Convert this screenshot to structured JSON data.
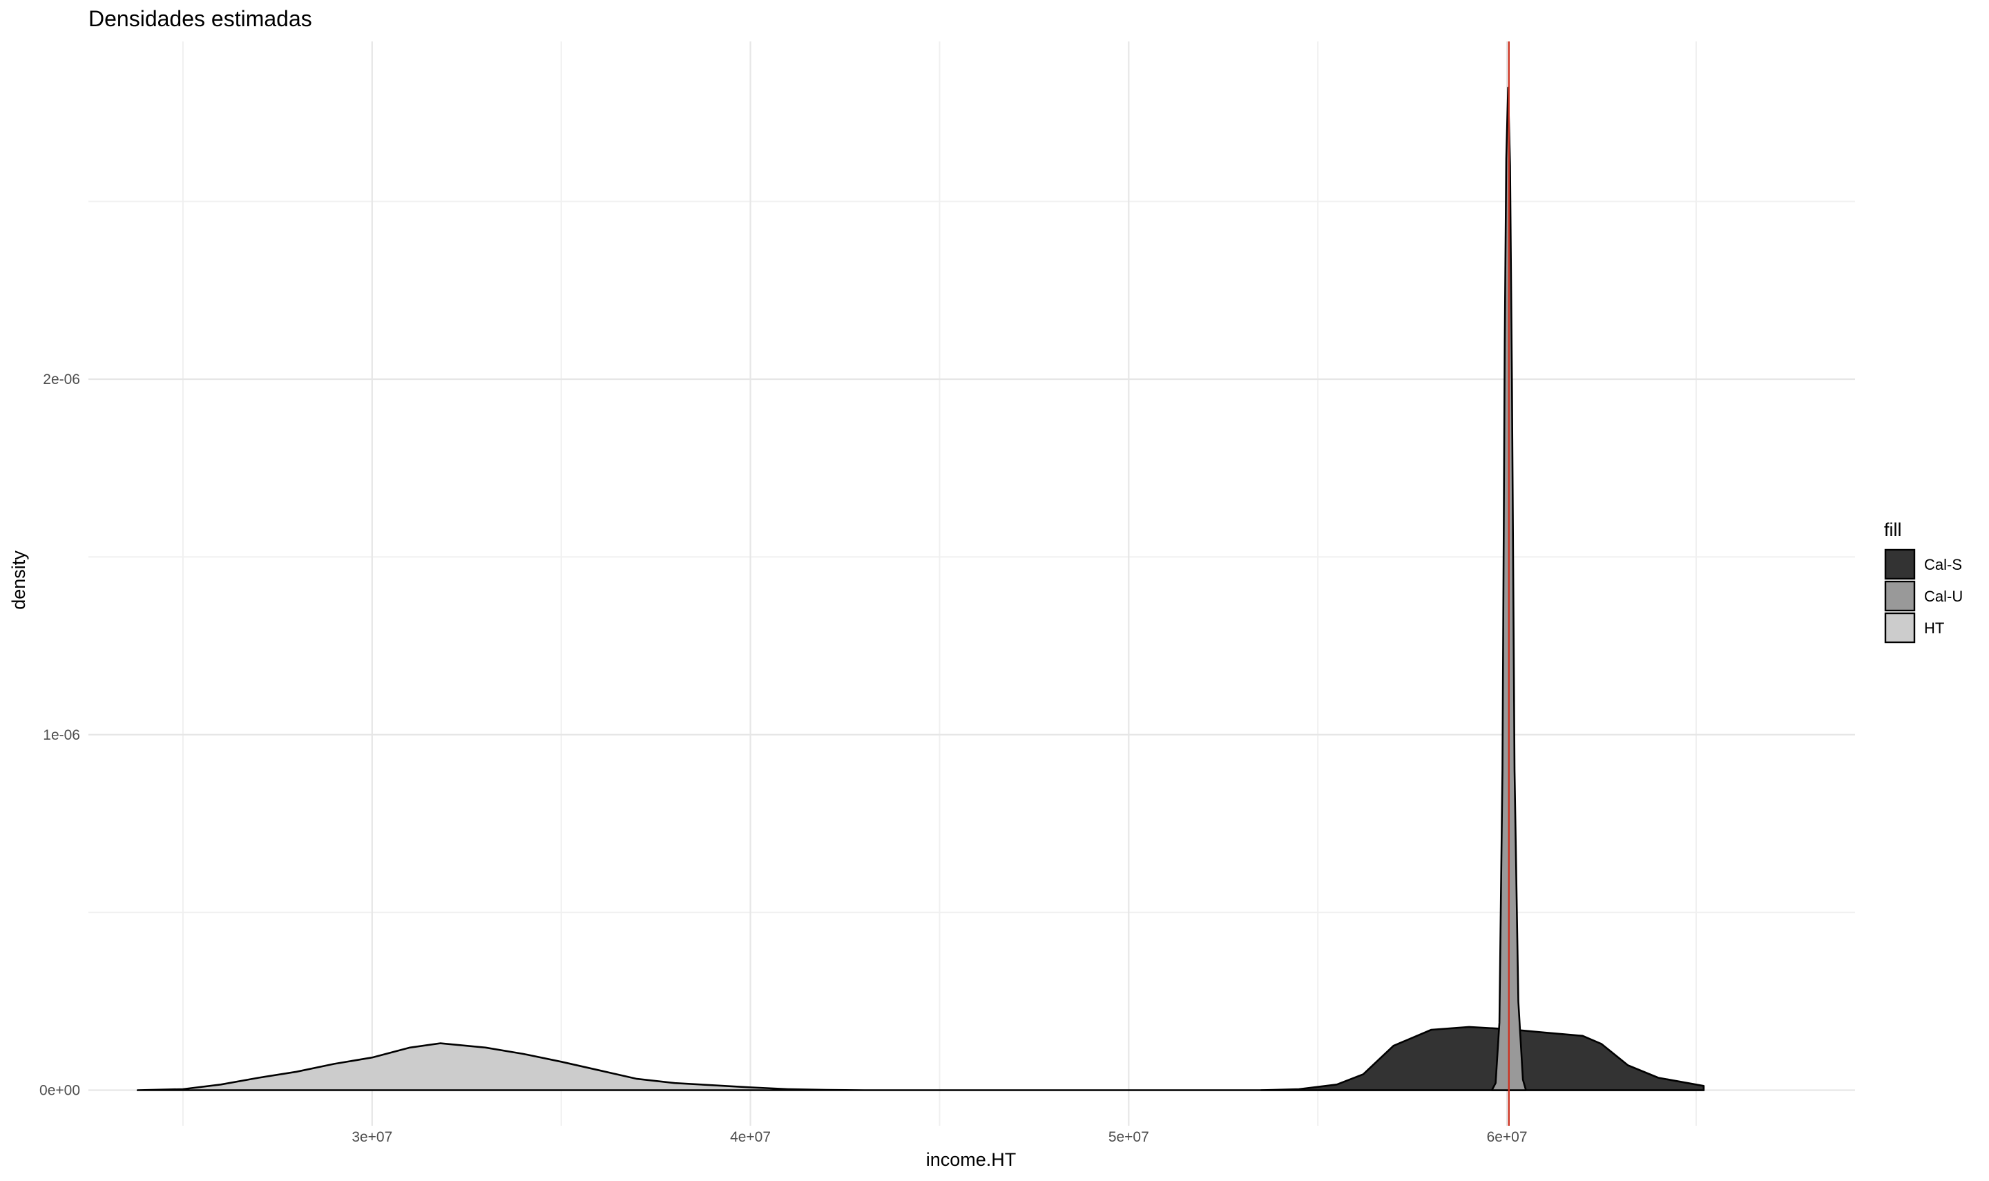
{
  "chart_data": {
    "type": "area",
    "title": "Densidades estimadas",
    "xlabel": "income.HT",
    "ylabel": "density",
    "xlim": [
      22500000,
      69200000
    ],
    "ylim": [
      -1e-07,
      2.95e-06
    ],
    "x_ticks": [
      {
        "value": 30000000,
        "label": "3e+07"
      },
      {
        "value": 40000000,
        "label": "4e+07"
      },
      {
        "value": 50000000,
        "label": "5e+07"
      },
      {
        "value": 60000000,
        "label": "6e+07"
      }
    ],
    "y_ticks": [
      {
        "value": 0,
        "label": "0e+00"
      },
      {
        "value": 1e-06,
        "label": "1e-06"
      },
      {
        "value": 2e-06,
        "label": "2e-06"
      }
    ],
    "grid": true,
    "legend": {
      "title": "fill",
      "position": "right"
    },
    "reference_line": {
      "x": 60050000,
      "color": "#cc3322"
    },
    "series": [
      {
        "name": "HT",
        "fill": "#cccccc",
        "x": [
          23800000,
          25000000,
          26000000,
          27000000,
          28000000,
          29000000,
          30000000,
          31000000,
          31800000,
          33000000,
          34000000,
          35000000,
          36000000,
          37000000,
          38000000,
          39000000,
          40000000,
          41000000,
          42000000,
          43000000,
          45000000,
          50000000,
          54000000,
          56000000,
          58000000,
          60000000,
          62000000,
          64000000,
          65200000
        ],
        "values": [
          0,
          3e-09,
          1.6e-08,
          3.5e-08,
          5.2e-08,
          7.4e-08,
          9.2e-08,
          1.2e-07,
          1.32e-07,
          1.2e-07,
          1.02e-07,
          8e-08,
          5.6e-08,
          3.2e-08,
          2e-08,
          1.4e-08,
          8e-09,
          3e-09,
          1e-09,
          0,
          0,
          0,
          0,
          0,
          0,
          0,
          0,
          0,
          0
        ]
      },
      {
        "name": "Cal-S",
        "fill": "#333333",
        "x": [
          53500000,
          54500000,
          55500000,
          56200000,
          57000000,
          58000000,
          59000000,
          60000000,
          61000000,
          62000000,
          62500000,
          63200000,
          64000000,
          65200000
        ],
        "values": [
          0,
          3e-09,
          1.6e-08,
          4.5e-08,
          1.25e-07,
          1.7e-07,
          1.78e-07,
          1.72e-07,
          1.62e-07,
          1.53e-07,
          1.3e-07,
          7e-08,
          3.5e-08,
          1.2e-08
        ]
      },
      {
        "name": "Cal-U",
        "fill": "#999999",
        "x": [
          59600000,
          59700000,
          59800000,
          59880000,
          59940000,
          59980000,
          60030000,
          60080000,
          60130000,
          60200000,
          60300000,
          60420000,
          60500000
        ],
        "values": [
          0,
          2e-08,
          1.9e-07,
          9e-07,
          2.1e-06,
          2.62e-06,
          2.82e-06,
          2.6e-06,
          2e-06,
          9e-07,
          2.5e-07,
          3e-08,
          0
        ]
      }
    ],
    "legend_order": [
      "Cal-S",
      "Cal-U",
      "HT"
    ]
  }
}
